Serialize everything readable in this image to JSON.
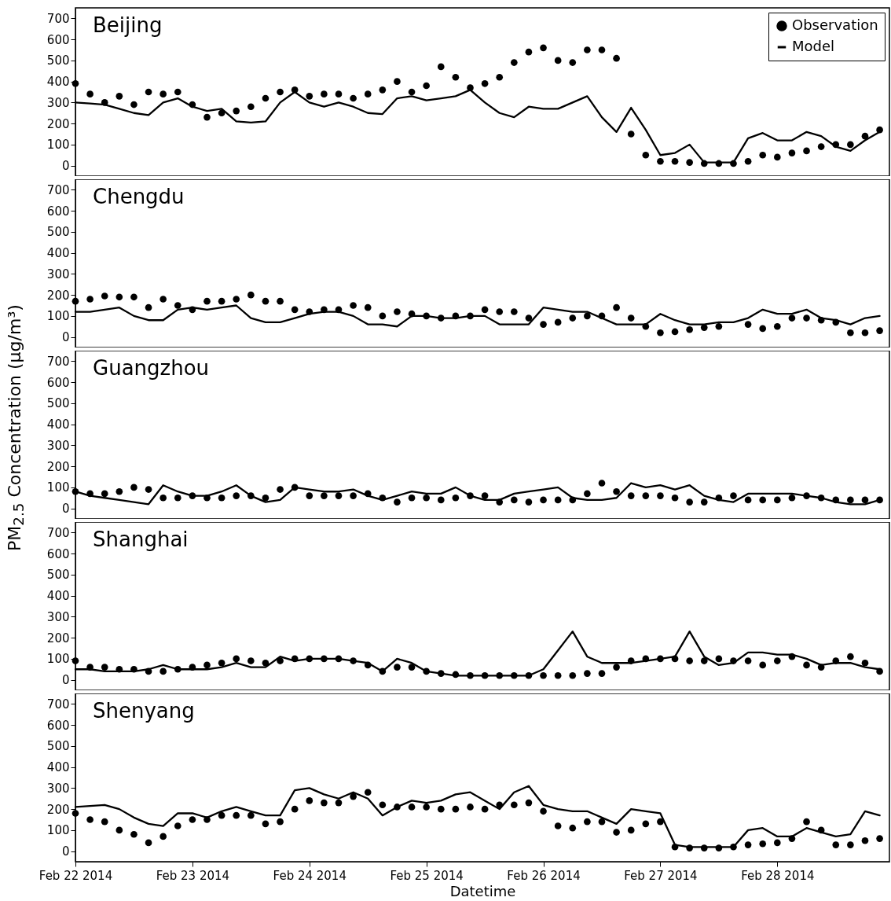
{
  "chart_data": [
    {
      "type": "scatter",
      "title": "Beijing",
      "legend": "top right",
      "tick_labels": "y",
      "grid": false,
      "xlim": [
        "2014-02-22T00:00",
        "2014-02-28T23:00"
      ],
      "xticks": [
        "2014-02-22",
        "2014-02-23",
        "2014-02-24",
        "2014-02-25",
        "2014-02-26",
        "2014-02-27",
        "2014-02-28"
      ],
      "ylim": [
        -50,
        750
      ],
      "yticks": [
        0,
        100,
        200,
        300,
        400,
        500,
        600,
        700
      ],
      "x": [
        "2014-02-22T00:00",
        "2014-02-22T03:00",
        "2014-02-22T06:00",
        "2014-02-22T09:00",
        "2014-02-22T12:00",
        "2014-02-22T15:00",
        "2014-02-22T18:00",
        "2014-02-22T21:00",
        "2014-02-23T00:00",
        "2014-02-23T03:00",
        "2014-02-23T06:00",
        "2014-02-23T09:00",
        "2014-02-23T12:00",
        "2014-02-23T15:00",
        "2014-02-23T18:00",
        "2014-02-23T21:00",
        "2014-02-24T00:00",
        "2014-02-24T03:00",
        "2014-02-24T06:00",
        "2014-02-24T09:00",
        "2014-02-24T12:00",
        "2014-02-24T15:00",
        "2014-02-24T18:00",
        "2014-02-24T21:00",
        "2014-02-25T00:00",
        "2014-02-25T03:00",
        "2014-02-25T06:00",
        "2014-02-25T09:00",
        "2014-02-25T12:00",
        "2014-02-25T15:00",
        "2014-02-25T18:00",
        "2014-02-25T21:00",
        "2014-02-26T00:00",
        "2014-02-26T03:00",
        "2014-02-26T06:00",
        "2014-02-26T09:00",
        "2014-02-26T12:00",
        "2014-02-26T15:00",
        "2014-02-26T18:00",
        "2014-02-26T21:00",
        "2014-02-27T00:00",
        "2014-02-27T03:00",
        "2014-02-27T06:00",
        "2014-02-27T09:00",
        "2014-02-27T12:00",
        "2014-02-27T15:00",
        "2014-02-27T18:00",
        "2014-02-27T21:00",
        "2014-02-28T00:00",
        "2014-02-28T03:00",
        "2014-02-28T06:00",
        "2014-02-28T09:00",
        "2014-02-28T12:00",
        "2014-02-28T15:00",
        "2014-02-28T18:00",
        "2014-02-28T21:00"
      ],
      "series": [
        {
          "name": "Observation",
          "color": "#000000",
          "values": [
            390,
            340,
            300,
            330,
            290,
            350,
            340,
            350,
            290,
            230,
            250,
            260,
            280,
            320,
            350,
            360,
            330,
            340,
            340,
            320,
            340,
            360,
            400,
            350,
            380,
            470,
            420,
            370,
            390,
            420,
            490,
            540,
            560,
            500,
            490,
            550,
            550,
            510,
            150,
            50,
            20,
            20,
            15,
            10,
            10,
            10,
            20,
            50,
            40,
            60,
            70,
            90,
            100,
            100,
            140,
            170
          ]
        },
        {
          "name": "Model",
          "type": "line",
          "color": "#000000",
          "values": [
            300,
            295,
            290,
            270,
            250,
            240,
            300,
            320,
            280,
            260,
            270,
            210,
            205,
            210,
            300,
            350,
            300,
            280,
            300,
            280,
            250,
            245,
            320,
            330,
            310,
            320,
            330,
            360,
            300,
            250,
            230,
            280,
            270,
            270,
            300,
            330,
            230,
            160,
            275,
            170,
            50,
            60,
            100,
            15,
            15,
            15,
            130,
            155,
            120,
            120,
            160,
            140,
            90,
            70,
            120,
            160
          ]
        }
      ]
    },
    {
      "type": "scatter",
      "title": "Chengdu",
      "tick_labels": "y",
      "grid": false,
      "xlim": [
        "2014-02-22T00:00",
        "2014-02-28T23:00"
      ],
      "xticks": [
        "2014-02-22",
        "2014-02-23",
        "2014-02-24",
        "2014-02-25",
        "2014-02-26",
        "2014-02-27",
        "2014-02-28"
      ],
      "ylim": [
        -50,
        750
      ],
      "yticks": [
        0,
        100,
        200,
        300,
        400,
        500,
        600,
        700
      ],
      "x": [
        "2014-02-22T00:00",
        "2014-02-22T03:00",
        "2014-02-22T06:00",
        "2014-02-22T09:00",
        "2014-02-22T12:00",
        "2014-02-22T15:00",
        "2014-02-22T18:00",
        "2014-02-22T21:00",
        "2014-02-23T00:00",
        "2014-02-23T03:00",
        "2014-02-23T06:00",
        "2014-02-23T09:00",
        "2014-02-23T12:00",
        "2014-02-23T15:00",
        "2014-02-23T18:00",
        "2014-02-23T21:00",
        "2014-02-24T00:00",
        "2014-02-24T03:00",
        "2014-02-24T06:00",
        "2014-02-24T09:00",
        "2014-02-24T12:00",
        "2014-02-24T15:00",
        "2014-02-24T18:00",
        "2014-02-24T21:00",
        "2014-02-25T00:00",
        "2014-02-25T03:00",
        "2014-02-25T06:00",
        "2014-02-25T09:00",
        "2014-02-25T12:00",
        "2014-02-25T15:00",
        "2014-02-25T18:00",
        "2014-02-25T21:00",
        "2014-02-26T00:00",
        "2014-02-26T03:00",
        "2014-02-26T06:00",
        "2014-02-26T09:00",
        "2014-02-26T12:00",
        "2014-02-26T15:00",
        "2014-02-26T18:00",
        "2014-02-26T21:00",
        "2014-02-27T00:00",
        "2014-02-27T03:00",
        "2014-02-27T06:00",
        "2014-02-27T09:00",
        "2014-02-27T12:00",
        "2014-02-27T15:00",
        "2014-02-27T18:00",
        "2014-02-27T21:00",
        "2014-02-28T00:00",
        "2014-02-28T03:00",
        "2014-02-28T06:00",
        "2014-02-28T09:00",
        "2014-02-28T12:00",
        "2014-02-28T15:00",
        "2014-02-28T18:00",
        "2014-02-28T21:00"
      ],
      "series": [
        {
          "color": "#000000",
          "values": [
            170,
            180,
            195,
            190,
            190,
            140,
            180,
            150,
            130,
            170,
            170,
            180,
            200,
            170,
            170,
            130,
            120,
            130,
            130,
            150,
            140,
            100,
            120,
            110,
            100,
            90,
            100,
            100,
            130,
            120,
            120,
            90,
            60,
            70,
            90,
            100,
            100,
            140,
            90,
            50,
            20,
            25,
            35,
            45,
            50,
            null,
            60,
            40,
            50,
            90,
            90,
            80,
            70,
            20,
            20,
            30
          ]
        },
        {
          "type": "line",
          "color": "#000000",
          "values": [
            120,
            120,
            130,
            140,
            100,
            80,
            80,
            130,
            140,
            130,
            140,
            150,
            90,
            70,
            70,
            90,
            110,
            120,
            120,
            100,
            60,
            60,
            50,
            100,
            100,
            90,
            90,
            100,
            100,
            60,
            60,
            60,
            140,
            130,
            120,
            120,
            90,
            60,
            60,
            60,
            110,
            80,
            60,
            60,
            70,
            70,
            90,
            130,
            110,
            110,
            130,
            90,
            80,
            60,
            90,
            100
          ]
        }
      ]
    },
    {
      "type": "scatter",
      "title": "Guangzhou",
      "ylabel": "PM$_{2.5}$ Concentration (µg/m³)",
      "tick_labels": "y",
      "grid": false,
      "xlim": [
        "2014-02-22T00:00",
        "2014-02-28T23:00"
      ],
      "xticks": [
        "2014-02-22",
        "2014-02-23",
        "2014-02-24",
        "2014-02-25",
        "2014-02-26",
        "2014-02-27",
        "2014-02-28"
      ],
      "ylim": [
        -50,
        750
      ],
      "yticks": [
        0,
        100,
        200,
        300,
        400,
        500,
        600,
        700
      ],
      "x": [
        "2014-02-22T00:00",
        "2014-02-22T03:00",
        "2014-02-22T06:00",
        "2014-02-22T09:00",
        "2014-02-22T12:00",
        "2014-02-22T15:00",
        "2014-02-22T18:00",
        "2014-02-22T21:00",
        "2014-02-23T00:00",
        "2014-02-23T03:00",
        "2014-02-23T06:00",
        "2014-02-23T09:00",
        "2014-02-23T12:00",
        "2014-02-23T15:00",
        "2014-02-23T18:00",
        "2014-02-23T21:00",
        "2014-02-24T00:00",
        "2014-02-24T03:00",
        "2014-02-24T06:00",
        "2014-02-24T09:00",
        "2014-02-24T12:00",
        "2014-02-24T15:00",
        "2014-02-24T18:00",
        "2014-02-24T21:00",
        "2014-02-25T00:00",
        "2014-02-25T03:00",
        "2014-02-25T06:00",
        "2014-02-25T09:00",
        "2014-02-25T12:00",
        "2014-02-25T15:00",
        "2014-02-25T18:00",
        "2014-02-25T21:00",
        "2014-02-26T00:00",
        "2014-02-26T03:00",
        "2014-02-26T06:00",
        "2014-02-26T09:00",
        "2014-02-26T12:00",
        "2014-02-26T15:00",
        "2014-02-26T18:00",
        "2014-02-26T21:00",
        "2014-02-27T00:00",
        "2014-02-27T03:00",
        "2014-02-27T06:00",
        "2014-02-27T09:00",
        "2014-02-27T12:00",
        "2014-02-27T15:00",
        "2014-02-27T18:00",
        "2014-02-27T21:00",
        "2014-02-28T00:00",
        "2014-02-28T03:00",
        "2014-02-28T06:00",
        "2014-02-28T09:00",
        "2014-02-28T12:00",
        "2014-02-28T15:00",
        "2014-02-28T18:00",
        "2014-02-28T21:00"
      ],
      "series": [
        {
          "color": "#000000",
          "values": [
            80,
            70,
            70,
            80,
            100,
            90,
            50,
            50,
            60,
            50,
            50,
            60,
            60,
            50,
            90,
            100,
            60,
            60,
            60,
            60,
            70,
            50,
            30,
            50,
            50,
            40,
            50,
            60,
            60,
            30,
            40,
            30,
            40,
            40,
            40,
            70,
            120,
            80,
            60,
            60,
            60,
            50,
            30,
            30,
            50,
            60,
            40,
            40,
            40,
            50,
            60,
            50,
            40,
            40,
            40,
            40
          ]
        },
        {
          "type": "line",
          "color": "#000000",
          "values": [
            80,
            60,
            50,
            40,
            30,
            20,
            110,
            80,
            60,
            60,
            80,
            110,
            60,
            30,
            40,
            100,
            90,
            80,
            80,
            90,
            60,
            40,
            60,
            80,
            70,
            70,
            100,
            60,
            40,
            40,
            70,
            80,
            90,
            100,
            50,
            40,
            40,
            50,
            120,
            100,
            110,
            90,
            110,
            60,
            40,
            30,
            70,
            70,
            70,
            70,
            60,
            50,
            30,
            20,
            20,
            40
          ]
        }
      ]
    },
    {
      "type": "scatter",
      "title": "Shanghai",
      "tick_labels": "y",
      "grid": false,
      "xlim": [
        "2014-02-22T00:00",
        "2014-02-28T23:00"
      ],
      "xticks": [
        "2014-02-22",
        "2014-02-23",
        "2014-02-24",
        "2014-02-25",
        "2014-02-26",
        "2014-02-27",
        "2014-02-28"
      ],
      "ylim": [
        -50,
        750
      ],
      "yticks": [
        0,
        100,
        200,
        300,
        400,
        500,
        600,
        700
      ],
      "x": [
        "2014-02-22T00:00",
        "2014-02-22T03:00",
        "2014-02-22T06:00",
        "2014-02-22T09:00",
        "2014-02-22T12:00",
        "2014-02-22T15:00",
        "2014-02-22T18:00",
        "2014-02-22T21:00",
        "2014-02-23T00:00",
        "2014-02-23T03:00",
        "2014-02-23T06:00",
        "2014-02-23T09:00",
        "2014-02-23T12:00",
        "2014-02-23T15:00",
        "2014-02-23T18:00",
        "2014-02-23T21:00",
        "2014-02-24T00:00",
        "2014-02-24T03:00",
        "2014-02-24T06:00",
        "2014-02-24T09:00",
        "2014-02-24T12:00",
        "2014-02-24T15:00",
        "2014-02-24T18:00",
        "2014-02-24T21:00",
        "2014-02-25T00:00",
        "2014-02-25T03:00",
        "2014-02-25T06:00",
        "2014-02-25T09:00",
        "2014-02-25T12:00",
        "2014-02-25T15:00",
        "2014-02-25T18:00",
        "2014-02-25T21:00",
        "2014-02-26T00:00",
        "2014-02-26T03:00",
        "2014-02-26T06:00",
        "2014-02-26T09:00",
        "2014-02-26T12:00",
        "2014-02-26T15:00",
        "2014-02-26T18:00",
        "2014-02-26T21:00",
        "2014-02-27T00:00",
        "2014-02-27T03:00",
        "2014-02-27T06:00",
        "2014-02-27T09:00",
        "2014-02-27T12:00",
        "2014-02-27T15:00",
        "2014-02-27T18:00",
        "2014-02-27T21:00",
        "2014-02-28T00:00",
        "2014-02-28T03:00",
        "2014-02-28T06:00",
        "2014-02-28T09:00",
        "2014-02-28T12:00",
        "2014-02-28T15:00",
        "2014-02-28T18:00",
        "2014-02-28T21:00"
      ],
      "series": [
        {
          "color": "#000000",
          "values": [
            90,
            60,
            60,
            50,
            50,
            40,
            40,
            50,
            60,
            70,
            80,
            100,
            90,
            80,
            90,
            100,
            100,
            100,
            100,
            90,
            70,
            40,
            60,
            60,
            40,
            30,
            25,
            20,
            20,
            20,
            20,
            20,
            20,
            20,
            20,
            30,
            30,
            60,
            90,
            100,
            100,
            100,
            90,
            90,
            100,
            90,
            90,
            70,
            90,
            110,
            70,
            60,
            90,
            110,
            80,
            40
          ]
        },
        {
          "type": "line",
          "color": "#000000",
          "values": [
            50,
            50,
            40,
            40,
            40,
            50,
            70,
            50,
            50,
            50,
            60,
            80,
            60,
            60,
            110,
            90,
            100,
            100,
            100,
            90,
            80,
            40,
            100,
            80,
            40,
            30,
            20,
            20,
            20,
            20,
            20,
            20,
            50,
            140,
            230,
            110,
            80,
            80,
            80,
            90,
            100,
            110,
            230,
            110,
            70,
            80,
            130,
            130,
            120,
            120,
            100,
            70,
            80,
            80,
            60,
            50
          ]
        }
      ]
    },
    {
      "type": "scatter",
      "title": "Shenyang",
      "xlabel": "Datetime",
      "grid": false,
      "xlim": [
        "2014-02-22T00:00",
        "2014-02-28T23:00"
      ],
      "xticks": [
        {
          "value": "2014-02-22",
          "label": "Feb 22 2014"
        },
        {
          "value": "2014-02-23",
          "label": "Feb 23 2014"
        },
        {
          "value": "2014-02-24",
          "label": "Feb 24 2014"
        },
        {
          "value": "2014-02-25",
          "label": "Feb 25 2014"
        },
        {
          "value": "2014-02-26",
          "label": "Feb 26 2014"
        },
        {
          "value": "2014-02-27",
          "label": "Feb 27 2014"
        },
        {
          "value": "2014-02-28",
          "label": "Feb 28 2014"
        }
      ],
      "ylim": [
        -50,
        750
      ],
      "yticks": [
        0,
        100,
        200,
        300,
        400,
        500,
        600,
        700
      ],
      "x": [
        "2014-02-22T00:00",
        "2014-02-22T03:00",
        "2014-02-22T06:00",
        "2014-02-22T09:00",
        "2014-02-22T12:00",
        "2014-02-22T15:00",
        "2014-02-22T18:00",
        "2014-02-22T21:00",
        "2014-02-23T00:00",
        "2014-02-23T03:00",
        "2014-02-23T06:00",
        "2014-02-23T09:00",
        "2014-02-23T12:00",
        "2014-02-23T15:00",
        "2014-02-23T18:00",
        "2014-02-23T21:00",
        "2014-02-24T00:00",
        "2014-02-24T03:00",
        "2014-02-24T06:00",
        "2014-02-24T09:00",
        "2014-02-24T12:00",
        "2014-02-24T15:00",
        "2014-02-24T18:00",
        "2014-02-24T21:00",
        "2014-02-25T00:00",
        "2014-02-25T03:00",
        "2014-02-25T06:00",
        "2014-02-25T09:00",
        "2014-02-25T12:00",
        "2014-02-25T15:00",
        "2014-02-25T18:00",
        "2014-02-25T21:00",
        "2014-02-26T00:00",
        "2014-02-26T03:00",
        "2014-02-26T06:00",
        "2014-02-26T09:00",
        "2014-02-26T12:00",
        "2014-02-26T15:00",
        "2014-02-26T18:00",
        "2014-02-26T21:00",
        "2014-02-27T00:00",
        "2014-02-27T03:00",
        "2014-02-27T06:00",
        "2014-02-27T09:00",
        "2014-02-27T12:00",
        "2014-02-27T15:00",
        "2014-02-27T18:00",
        "2014-02-27T21:00",
        "2014-02-28T00:00",
        "2014-02-28T03:00",
        "2014-02-28T06:00",
        "2014-02-28T09:00",
        "2014-02-28T12:00",
        "2014-02-28T15:00",
        "2014-02-28T18:00",
        "2014-02-28T21:00"
      ],
      "series": [
        {
          "color": "#000000",
          "values": [
            180,
            150,
            140,
            100,
            80,
            40,
            70,
            120,
            150,
            150,
            170,
            170,
            170,
            130,
            140,
            200,
            240,
            230,
            230,
            260,
            280,
            220,
            210,
            210,
            210,
            200,
            200,
            210,
            200,
            220,
            220,
            230,
            190,
            120,
            110,
            140,
            140,
            90,
            100,
            130,
            140,
            20,
            15,
            15,
            15,
            20,
            30,
            35,
            40,
            60,
            140,
            100,
            30,
            30,
            50,
            60
          ]
        },
        {
          "type": "line",
          "color": "#000000",
          "values": [
            210,
            215,
            220,
            200,
            160,
            130,
            120,
            180,
            180,
            160,
            190,
            210,
            190,
            170,
            170,
            290,
            300,
            270,
            250,
            280,
            250,
            170,
            210,
            240,
            230,
            240,
            270,
            280,
            240,
            200,
            280,
            310,
            220,
            200,
            190,
            190,
            160,
            130,
            200,
            190,
            180,
            30,
            20,
            20,
            20,
            20,
            100,
            110,
            70,
            70,
            110,
            90,
            70,
            80,
            190,
            170
          ]
        }
      ]
    }
  ]
}
